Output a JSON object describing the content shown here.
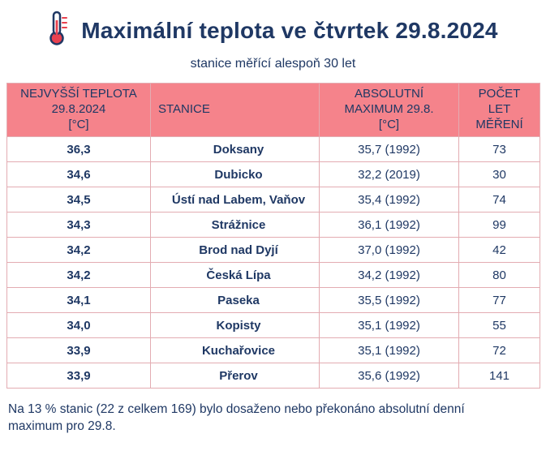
{
  "page": {
    "title": "Maximální teplota ve čtvrtek 29.8.2024",
    "subtitle": "stanice měřící alespoň 30 let",
    "footer": "Na 13 % stanic (22 z celkem 169) bylo dosaženo nebo překonáno absolutní denní maximum pro 29.8."
  },
  "colors": {
    "header_bg": "#f5838b",
    "table_border": "#e3acb2",
    "text_navy": "#1f3864",
    "thermometer_red": "#e8414f"
  },
  "icons": {
    "thermometer": "thermometer-icon"
  },
  "chart_data": {
    "type": "table",
    "title": "Maximální teplota ve čtvrtek 29.8.2024",
    "subtitle": "stanice měřící alespoň 30 let",
    "columns": [
      "NEJVYŠŠÍ TEPLOTA\n29.8.2024\n[°C]",
      "STANICE",
      "ABSOLUTNÍ\nMAXIMUM 29.8.\n[°C]",
      "POČET\nLET\nMĚŘENÍ"
    ],
    "rows": [
      [
        "36,3",
        "Doksany",
        "35,7 (1992)",
        "73"
      ],
      [
        "34,6",
        "Dubicko",
        "32,2 (2019)",
        "30"
      ],
      [
        "34,5",
        "Ústí nad Labem, Vaňov",
        "35,4 (1992)",
        "74"
      ],
      [
        "34,3",
        "Strážnice",
        "36,1 (1992)",
        "99"
      ],
      [
        "34,2",
        "Brod nad Dyjí",
        "37,0 (1992)",
        "42"
      ],
      [
        "34,2",
        "Česká Lípa",
        "34,2 (1992)",
        "80"
      ],
      [
        "34,1",
        "Paseka",
        "35,5 (1992)",
        "77"
      ],
      [
        "34,0",
        "Kopisty",
        "35,1 (1992)",
        "55"
      ],
      [
        "33,9",
        "Kuchařovice",
        "35,1 (1992)",
        "72"
      ],
      [
        "33,9",
        "Přerov",
        "35,6 (1992)",
        "141"
      ]
    ],
    "footer_note": "Na 13 % stanic (22 z celkem 169) bylo dosaženo nebo překonáno absolutní denní maximum pro 29.8."
  }
}
